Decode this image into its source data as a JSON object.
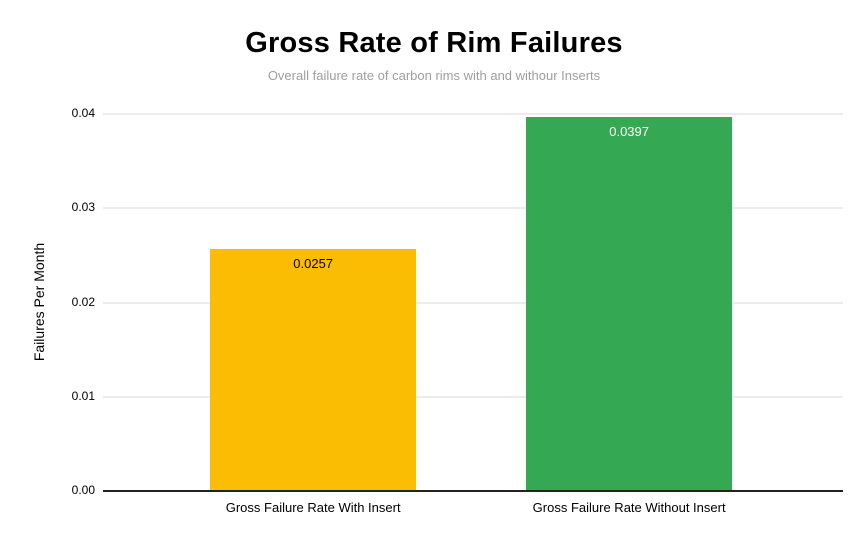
{
  "chart_data": {
    "type": "bar",
    "title": "Gross Rate of Rim Failures",
    "subtitle": "Overall failure rate of carbon rims with and withour Inserts",
    "categories": [
      "Gross Failure Rate With Insert",
      "Gross Failure Rate Without Insert"
    ],
    "values": [
      0.0257,
      0.0397
    ],
    "value_labels": [
      "0.0257",
      "0.0397"
    ],
    "bar_colors": [
      "#FBBC04",
      "#34A853"
    ],
    "value_label_colors": [
      "#000000",
      "#FFFFFF"
    ],
    "xlabel": "",
    "ylabel": "Failures Per Month",
    "ylim": [
      0,
      0.04
    ],
    "yticks": [
      0,
      0.01,
      0.02,
      0.03,
      0.04
    ],
    "ytick_labels": [
      "0.00",
      "0.01",
      "0.02",
      "0.03",
      "0.04"
    ],
    "grid": true,
    "legend": "none",
    "colors": {
      "title": "#000000",
      "subtitle": "#9e9e9e",
      "axis_text": "#000000",
      "gridline": "#d9d9d9",
      "axis_line": "#222222",
      "background": "#ffffff"
    }
  }
}
